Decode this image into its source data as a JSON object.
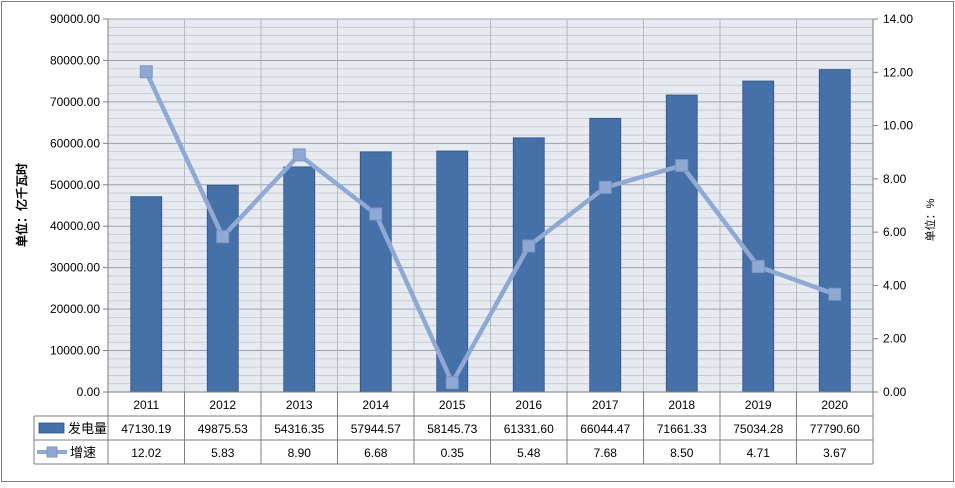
{
  "chart_data": {
    "type": "bar",
    "categories": [
      "2011",
      "2012",
      "2013",
      "2014",
      "2015",
      "2016",
      "2017",
      "2018",
      "2019",
      "2020"
    ],
    "series": [
      {
        "name": "发电量",
        "type": "bar",
        "axis": "left",
        "color": "#4571a8",
        "values": [
          47130.19,
          49875.53,
          54316.35,
          57944.57,
          58145.73,
          61331.6,
          66044.47,
          71661.33,
          75034.28,
          77790.6
        ],
        "labels": [
          "47130.19",
          "49875.53",
          "54316.35",
          "57944.57",
          "58145.73",
          "61331.60",
          "66044.47",
          "71661.33",
          "75034.28",
          "77790.60"
        ]
      },
      {
        "name": "增速",
        "type": "line",
        "axis": "right",
        "color": "#8fa9d4",
        "values": [
          12.02,
          5.83,
          8.9,
          6.68,
          0.35,
          5.48,
          7.68,
          8.5,
          4.71,
          3.67
        ],
        "labels": [
          "12.02",
          "5.83",
          "8.90",
          "6.68",
          "0.35",
          "5.48",
          "7.68",
          "8.50",
          "4.71",
          "3.67"
        ]
      }
    ],
    "y_left": {
      "label": "单位：亿千瓦时",
      "ylim": [
        0,
        90000
      ],
      "ticks": [
        "0.00",
        "10000.00",
        "20000.00",
        "30000.00",
        "40000.00",
        "50000.00",
        "60000.00",
        "70000.00",
        "80000.00",
        "90000.00"
      ]
    },
    "y_right": {
      "label": "单位：%",
      "ylim": [
        0,
        14
      ],
      "ticks": [
        "0.00",
        "2.00",
        "4.00",
        "6.00",
        "8.00",
        "10.00",
        "12.00",
        "14.00"
      ]
    },
    "grid": true,
    "legend": "data-table-bottom"
  }
}
